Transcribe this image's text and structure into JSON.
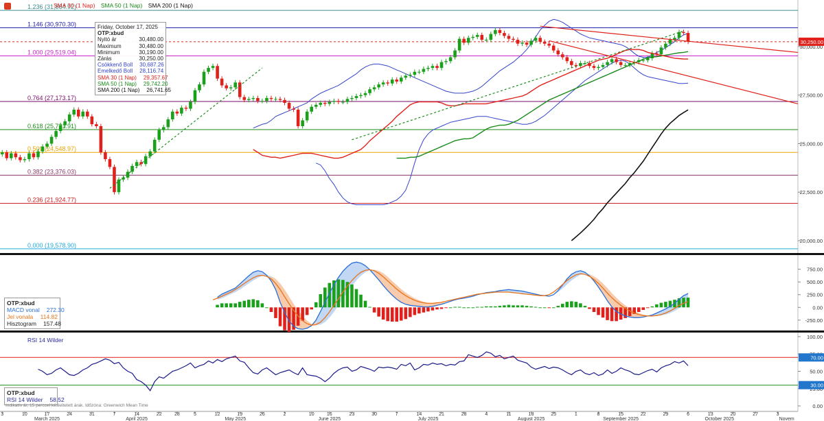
{
  "legend": {
    "items": [
      {
        "text": "SMA 30 (1 Nap)",
        "color": "#e0201a"
      },
      {
        "text": "SMA 50 (1 Nap)",
        "color": "#1a8a1a"
      },
      {
        "text": "SMA 200 (1 Nap)",
        "color": "#111111"
      }
    ]
  },
  "info_box": {
    "date": "Friday, October 17, 2025",
    "symbol": "OTP:xbud",
    "rows": [
      {
        "label": "Nyitó ár",
        "value": "30,480.00",
        "color": "#222222"
      },
      {
        "label": "Maximum",
        "value": "30,480.00",
        "color": "#222222"
      },
      {
        "label": "Minimum",
        "value": "30,190.00",
        "color": "#222222"
      },
      {
        "label": "Zárás",
        "value": "30,250.00",
        "color": "#222222"
      },
      {
        "label": "Csökkenő Boll",
        "value": "30,687.26",
        "color": "#3344cc"
      },
      {
        "label": "Emelkedő Boll",
        "value": "28,116.74",
        "color": "#3344cc"
      },
      {
        "label": "SMA 30 (1 Nap)",
        "value": "29,357.67",
        "color": "#e0201a"
      },
      {
        "label": "SMA 50 (1 Nap)",
        "value": "29,742.20",
        "color": "#1a8a1a"
      },
      {
        "label": "SMA 200 (1 Nap)",
        "value": "26,741.65",
        "color": "#111111"
      }
    ]
  },
  "macd_box": {
    "symbol": "OTP:xbud",
    "rows": [
      {
        "label": "MACD vonal",
        "value": "272.30",
        "color": "#2a6fd6"
      },
      {
        "label": "Jel vonala",
        "value": "114.82",
        "color": "#e8741a"
      },
      {
        "label": "Hisztogram",
        "value": "157.48",
        "color": "#222222"
      }
    ]
  },
  "rsi_box": {
    "symbol": "OTP:xbud",
    "label": "RSI 14 Wilder",
    "value": "58.52"
  },
  "rsi_title": "RSI 14 Wilder",
  "footnote": "Indikatív ár, 15 perccel késleltetett árak. Időzóna: Greenwich Mean Time",
  "chart_data": {
    "type": "candlestick",
    "price_axis": {
      "ticks": [
        "20,000.00",
        "22,500.00",
        "25,000.00",
        "27,500.00",
        "30,000.00"
      ],
      "ylim": [
        19400,
        32400
      ]
    },
    "last_price": {
      "label": "30,250.00",
      "value": 30250
    },
    "fibonacci": [
      {
        "label": "1.236 (31,864.92)",
        "value": 31864.92,
        "color": "#3c8c8c"
      },
      {
        "label": "1.146 (30,970.30)",
        "value": 30970.3,
        "color": "#2222aa"
      },
      {
        "label": "1.000 (29,519.04)",
        "value": 29519.04,
        "color": "#cc22cc"
      },
      {
        "label": "0.764 (27,173.17)",
        "value": 27173.17,
        "color": "#7a0a6a"
      },
      {
        "label": "0.618 (25,721.91)",
        "value": 25721.91,
        "color": "#1a8a1a"
      },
      {
        "label": "0.500 (24,548.97)",
        "value": 24548.97,
        "color": "#e8a400"
      },
      {
        "label": "0.382 (23,376.03)",
        "value": 23376.03,
        "color": "#8a3a6a"
      },
      {
        "label": "0.236 (21,924.77)",
        "value": 21924.77,
        "color": "#cc2222"
      },
      {
        "label": "0.000 (19,578.90)",
        "value": 19578.9,
        "color": "#22aadd"
      }
    ],
    "x_ticks": [
      {
        "label": "3",
        "i": 0
      },
      {
        "label": "10",
        "i": 5
      },
      {
        "label": "17",
        "i": 10
      },
      {
        "label": "24",
        "i": 15
      },
      {
        "label": "31",
        "i": 20
      },
      {
        "label": "7",
        "i": 25
      },
      {
        "label": "14",
        "i": 30
      },
      {
        "label": "22",
        "i": 35
      },
      {
        "label": "28",
        "i": 39
      },
      {
        "label": "5",
        "i": 43
      },
      {
        "label": "12",
        "i": 48
      },
      {
        "label": "19",
        "i": 53
      },
      {
        "label": "26",
        "i": 58
      },
      {
        "label": "2",
        "i": 63
      },
      {
        "label": "10",
        "i": 69
      },
      {
        "label": "16",
        "i": 73
      },
      {
        "label": "23",
        "i": 78
      },
      {
        "label": "30",
        "i": 83
      },
      {
        "label": "7",
        "i": 88
      },
      {
        "label": "14",
        "i": 93
      },
      {
        "label": "21",
        "i": 98
      },
      {
        "label": "28",
        "i": 103
      },
      {
        "label": "4",
        "i": 108
      },
      {
        "label": "11",
        "i": 113
      },
      {
        "label": "18",
        "i": 118
      },
      {
        "label": "25",
        "i": 123
      },
      {
        "label": "1",
        "i": 128
      },
      {
        "label": "8",
        "i": 133
      },
      {
        "label": "15",
        "i": 138
      },
      {
        "label": "22",
        "i": 143
      },
      {
        "label": "29",
        "i": 148
      },
      {
        "label": "6",
        "i": 153
      },
      {
        "label": "13",
        "i": 158
      },
      {
        "label": "20",
        "i": 163
      },
      {
        "label": "27",
        "i": 168
      },
      {
        "label": "3",
        "i": 173
      }
    ],
    "month_labels": [
      {
        "label": "March 2025",
        "i": 10
      },
      {
        "label": "April 2025",
        "i": 30
      },
      {
        "label": "May 2025",
        "i": 52
      },
      {
        "label": "June 2025",
        "i": 73
      },
      {
        "label": "July 2025",
        "i": 95
      },
      {
        "label": "August 2025",
        "i": 118
      },
      {
        "label": "September 2025",
        "i": 138
      },
      {
        "label": "October 2025",
        "i": 160
      },
      {
        "label": "Novem",
        "i": 175
      }
    ],
    "n_slots": 178,
    "closes": [
      24550,
      24250,
      24500,
      24300,
      24150,
      24200,
      24500,
      24300,
      24600,
      24850,
      25000,
      25350,
      25650,
      25950,
      26150,
      26500,
      26750,
      26400,
      26650,
      26400,
      26000,
      25900,
      24550,
      24200,
      23800,
      22500,
      23150,
      23250,
      23550,
      23850,
      24050,
      23950,
      24350,
      24600,
      25200,
      25700,
      25850,
      26250,
      26650,
      26550,
      26850,
      26800,
      27150,
      27750,
      28050,
      28700,
      28900,
      29000,
      28350,
      28000,
      27850,
      27900,
      28150,
      27400,
      27250,
      27300,
      27350,
      27200,
      27200,
      27350,
      27300,
      27300,
      27250,
      27100,
      26800,
      26750,
      25900,
      26200,
      26650,
      26900,
      27000,
      27100,
      27050,
      27150,
      27200,
      27150,
      27150,
      27300,
      27350,
      27450,
      27500,
      27600,
      27800,
      27900,
      28050,
      28150,
      28100,
      28300,
      28200,
      28400,
      28500,
      28550,
      28700,
      28700,
      28850,
      28900,
      29000,
      28900,
      29200,
      29250,
      29450,
      29800,
      30400,
      30200,
      30450,
      30500,
      30600,
      30350,
      30350,
      30650,
      30850,
      30700,
      30550,
      30400,
      30350,
      30150,
      30200,
      30100,
      30300,
      30450,
      30250,
      30150,
      30050,
      29800,
      29600,
      29450,
      29250,
      29050,
      29000,
      29150,
      29150,
      29000,
      28900,
      28950,
      29050,
      29200,
      29350,
      29200,
      29050,
      29050,
      29150,
      29200,
      29300,
      29300,
      29400,
      29650,
      29600,
      29950,
      30150,
      30350,
      30450,
      30750,
      30700,
      30250
    ],
    "sma30": [
      24700,
      24550,
      24400,
      24350,
      24300,
      24300,
      24250,
      24300,
      24350,
      24400,
      24450,
      24500,
      24500,
      24500,
      24450,
      24400,
      24350,
      24300,
      24250,
      24250,
      24300,
      24400,
      24500,
      24600,
      24700,
      24900,
      25150,
      25350,
      25550,
      25750,
      25950,
      26150,
      26400,
      26600,
      26800,
      27000,
      27100,
      27150,
      27150,
      27150,
      27150,
      27150,
      27100,
      27000,
      26950,
      26950,
      27000,
      27050,
      27050,
      27050,
      27050,
      27050,
      27050,
      27100,
      27150,
      27200,
      27250,
      27300,
      27350,
      27400,
      27450,
      27550,
      27700,
      27850,
      28000,
      28100,
      28200,
      28300,
      28400,
      28500,
      28600,
      28700,
      28800,
      28900,
      29000,
      29100,
      29200,
      29300,
      29350,
      29400,
      29500,
      29600,
      29700,
      29800,
      29850,
      29850,
      29850,
      29800,
      29700,
      29650,
      29600,
      29550,
      29500,
      29450,
      29400,
      29380,
      29360,
      29358
    ],
    "sma50": [
      24250,
      24250,
      24250,
      24300,
      24300,
      24350,
      24450,
      24550,
      24650,
      24750,
      24850,
      24950,
      25050,
      25150,
      25200,
      25250,
      25250,
      25300,
      25450,
      25600,
      25750,
      25850,
      25900,
      25950,
      25950,
      26000,
      26100,
      26200,
      26350,
      26500,
      26650,
      26800,
      26950,
      27100,
      27250,
      27350,
      27450,
      27550,
      27650,
      27750,
      27850,
      27950,
      28050,
      28150,
      28250,
      28350,
      28450,
      28550,
      28650,
      28750,
      28850,
      28950,
      29050,
      29150,
      29250,
      29350,
      29420,
      29460,
      29480,
      29520,
      29560,
      29600,
      29640,
      29680,
      29700,
      29742
    ],
    "sma200": [
      20000,
      20200,
      20400,
      20620,
      20850,
      21100,
      21400,
      21650,
      21950,
      22200,
      22450,
      22700,
      22950,
      23250,
      23500,
      23800,
      24100,
      24450,
      24800,
      25150,
      25500,
      25800,
      26050,
      26250,
      26450,
      26600,
      26741
    ],
    "boll_upper": [
      25800,
      25900,
      26000,
      26050,
      26200,
      26400,
      26500,
      26600,
      26700,
      26800,
      26900,
      27000,
      27100,
      27300,
      27450,
      27600,
      27700,
      27800,
      27900,
      28000,
      28150,
      28300,
      28450,
      28600,
      28800,
      28950,
      29050,
      29100,
      29100,
      29050,
      29000,
      28900,
      28800,
      28700,
      28600,
      28500,
      28400,
      28300,
      28200,
      28100,
      28000,
      27900,
      27800,
      27700,
      27650,
      27600,
      27600,
      27600,
      27650,
      27700,
      27800,
      27950,
      28150,
      28350,
      28550,
      28750,
      28900,
      29050,
      29200,
      29400,
      29600,
      29850,
      30150,
      30500,
      30850,
      31100,
      31300,
      31400,
      31350,
      31250,
      31100,
      30950,
      30800,
      30650,
      30550,
      30450,
      30400,
      30350,
      30300,
      30250,
      30200,
      30150,
      30100,
      30000,
      29850,
      29650,
      29500,
      29450,
      29450,
      29550,
      29700,
      29800,
      29950,
      30100,
      30250,
      30450,
      30600,
      30687
    ],
    "boll_lower": [
      24000,
      23900,
      23600,
      23200,
      22900,
      22500,
      22200,
      22000,
      21900,
      21850,
      21850,
      21850,
      21850,
      21850,
      21850,
      21850,
      21900,
      22000,
      22100,
      22300,
      22600,
      23200,
      24000,
      24700,
      25200,
      25500,
      25700,
      25800,
      25900,
      26000,
      26100,
      26150,
      26200,
      26250,
      26300,
      26350,
      26400,
      26400,
      26400,
      26350,
      26300,
      26250,
      26200,
      26150,
      26100,
      26050,
      26000,
      26000,
      26050,
      26150,
      26300,
      26450,
      26650,
      26850,
      27050,
      27250,
      27450,
      27650,
      27850,
      28050,
      28250,
      28400,
      28550,
      28700,
      28850,
      29000,
      29150,
      29250,
      29300,
      29250,
      29100,
      28900,
      28700,
      28550,
      28450,
      28400,
      28350,
      28300,
      28250,
      28200,
      28150,
      28100,
      28100,
      28116
    ],
    "trendlines": [
      {
        "name": "uptrend-1",
        "style": "dashed",
        "color": "#1a8a1a",
        "points": [
          [
            24,
            22700
          ],
          [
            58,
            28900
          ]
        ]
      },
      {
        "name": "uptrend-2",
        "style": "dashed",
        "color": "#1a8a1a",
        "points": [
          [
            78,
            25200
          ],
          [
            152,
            30800
          ]
        ]
      },
      {
        "name": "resistance",
        "style": "solid",
        "color": "#e0201a",
        "points": [
          [
            120,
            31050
          ],
          [
            178,
            29700
          ]
        ]
      },
      {
        "name": "support",
        "style": "solid",
        "color": "#e0201a",
        "points": [
          [
            122,
            30300
          ],
          [
            178,
            27050
          ]
        ]
      }
    ],
    "macd": {
      "axis_ticks": [
        "750.00",
        "500.00",
        "250.00",
        "0.00",
        "-250.00"
      ],
      "ylim": [
        -400,
        920
      ],
      "macd_line": [
        200,
        260,
        300,
        340,
        380,
        460,
        540,
        620,
        690,
        720,
        700,
        630,
        520,
        350,
        100,
        -100,
        -270,
        -370,
        -420,
        -430,
        -410,
        -360,
        -250,
        -80,
        100,
        280,
        440,
        590,
        710,
        800,
        870,
        890,
        870,
        820,
        740,
        640,
        540,
        430,
        330,
        240,
        160,
        100,
        60,
        40,
        30,
        20,
        10,
        10,
        20,
        40,
        60,
        90,
        120,
        150,
        170,
        180,
        200,
        220,
        250,
        270,
        290,
        300,
        310,
        330,
        340,
        350,
        340,
        330,
        320,
        300,
        280,
        260,
        240,
        230,
        220,
        250,
        330,
        440,
        560,
        650,
        700,
        720,
        690,
        620,
        520,
        400,
        270,
        130,
        10,
        -80,
        -130,
        -170,
        -190,
        -200,
        -200,
        -190,
        -170,
        -150,
        -110,
        -70,
        -30,
        20,
        80,
        160,
        230,
        272
      ],
      "signal_line": [
        150,
        180,
        220,
        260,
        300,
        350,
        410,
        470,
        530,
        580,
        620,
        630,
        610,
        560,
        470,
        350,
        210,
        70,
        -60,
        -170,
        -260,
        -320,
        -350,
        -340,
        -290,
        -200,
        -90,
        40,
        170,
        300,
        420,
        530,
        620,
        690,
        730,
        740,
        720,
        670,
        600,
        520,
        440,
        360,
        290,
        230,
        180,
        140,
        110,
        90,
        80,
        80,
        90,
        100,
        120,
        140,
        160,
        180,
        200,
        220,
        240,
        260,
        270,
        280,
        290,
        300,
        300,
        300,
        300,
        290,
        280,
        270,
        260,
        250,
        240,
        230,
        230,
        250,
        300,
        370,
        450,
        530,
        590,
        640,
        660,
        650,
        610,
        550,
        470,
        380,
        280,
        190,
        110,
        40,
        -20,
        -70,
        -110,
        -140,
        -160,
        -170,
        -170,
        -160,
        -140,
        -110,
        -70,
        -20,
        40,
        80,
        115
      ]
    },
    "rsi": {
      "axis_ticks": [
        "100.00",
        "75.00",
        "50.00",
        "25.00",
        "0.00"
      ],
      "levels": [
        {
          "label": "70.00",
          "value": 70
        },
        {
          "label": "30.00",
          "value": 30
        }
      ],
      "ylim": [
        0,
        100
      ],
      "values": [
        53,
        50,
        45,
        47,
        52,
        55,
        50,
        45,
        44,
        47,
        52,
        55,
        60,
        62,
        65,
        68,
        66,
        61,
        63,
        55,
        50,
        47,
        38,
        35,
        30,
        22,
        35,
        42,
        40,
        45,
        50,
        52,
        55,
        58,
        62,
        55,
        58,
        60,
        65,
        62,
        67,
        64,
        68,
        70,
        72,
        65,
        63,
        55,
        48,
        46,
        52,
        55,
        50,
        45,
        48,
        50,
        52,
        48,
        45,
        55,
        45,
        44,
        43,
        40,
        35,
        40,
        47,
        52,
        55,
        56,
        50,
        52,
        57,
        55,
        53,
        50,
        56,
        55,
        56,
        55,
        53,
        60,
        58,
        62,
        52,
        55,
        60,
        59,
        62,
        60,
        61,
        58,
        60,
        59,
        64,
        65,
        74,
        72,
        70,
        73,
        78,
        76,
        71,
        73,
        68,
        70,
        72,
        66,
        64,
        62,
        56,
        53,
        55,
        57,
        54,
        56,
        55,
        52,
        48,
        45,
        50,
        52,
        47,
        45,
        48,
        44,
        46,
        52,
        47,
        50,
        55,
        52,
        50,
        46,
        45,
        48,
        51,
        53,
        49,
        55,
        58,
        60,
        64,
        62,
        65,
        58
      ],
      "last": 58.52
    }
  }
}
